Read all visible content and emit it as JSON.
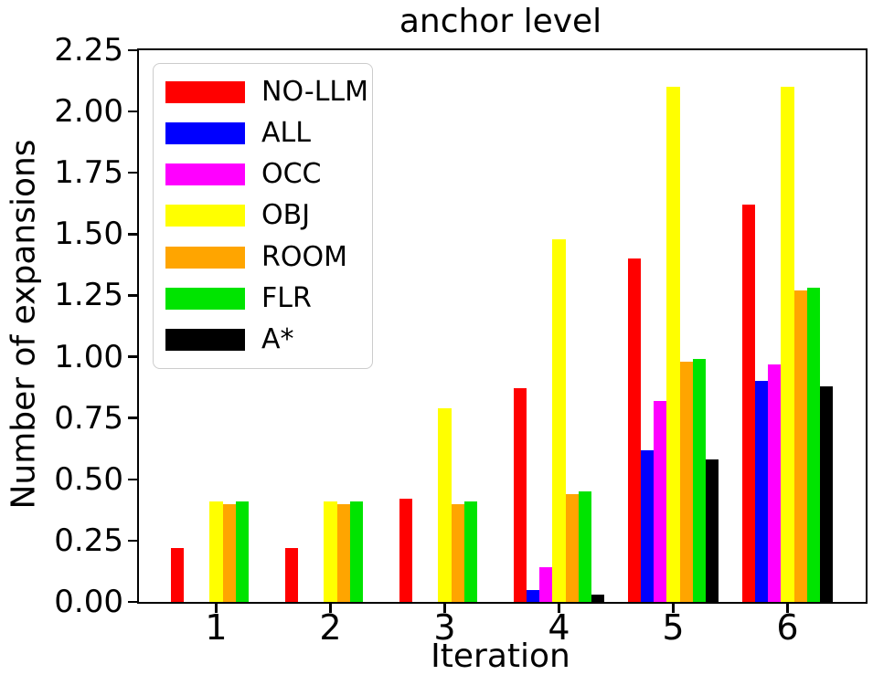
{
  "figure": {
    "title": "anchor level",
    "xlabel": "Iteration",
    "ylabel": "Number of expansions"
  },
  "chart_data": {
    "type": "bar",
    "title": "anchor level",
    "xlabel": "Iteration",
    "ylabel": "Number of expansions",
    "categories": [
      "1",
      "2",
      "3",
      "4",
      "5",
      "6"
    ],
    "series": [
      {
        "name": "NO-LLM",
        "color": "#ff0000",
        "values": [
          0.22,
          0.22,
          0.42,
          0.87,
          1.4,
          1.62
        ]
      },
      {
        "name": "ALL",
        "color": "#0000ff",
        "values": [
          0,
          0,
          0,
          0.05,
          0.62,
          0.9
        ]
      },
      {
        "name": "OCC",
        "color": "#ff00ff",
        "values": [
          0,
          0,
          0,
          0.14,
          0.82,
          0.97
        ]
      },
      {
        "name": "OBJ",
        "color": "#ffff00",
        "values": [
          0.41,
          0.41,
          0.79,
          1.48,
          2.1,
          2.1
        ]
      },
      {
        "name": "ROOM",
        "color": "#ffa500",
        "values": [
          0.4,
          0.4,
          0.4,
          0.44,
          0.98,
          1.27
        ]
      },
      {
        "name": "FLR",
        "color": "#00e400",
        "values": [
          0.41,
          0.41,
          0.41,
          0.45,
          0.99,
          1.28
        ]
      },
      {
        "name": "A*",
        "color": "#000000",
        "values": [
          0,
          0,
          0,
          0.03,
          0.58,
          0.88
        ]
      }
    ],
    "ylim": [
      0,
      2.25
    ],
    "yticks": [
      "0.00",
      "0.25",
      "0.50",
      "0.75",
      "1.00",
      "1.25",
      "1.50",
      "1.75",
      "2.00",
      "2.25"
    ],
    "ytick_step": 0.25,
    "legend_position": "upper left",
    "grid": false
  }
}
